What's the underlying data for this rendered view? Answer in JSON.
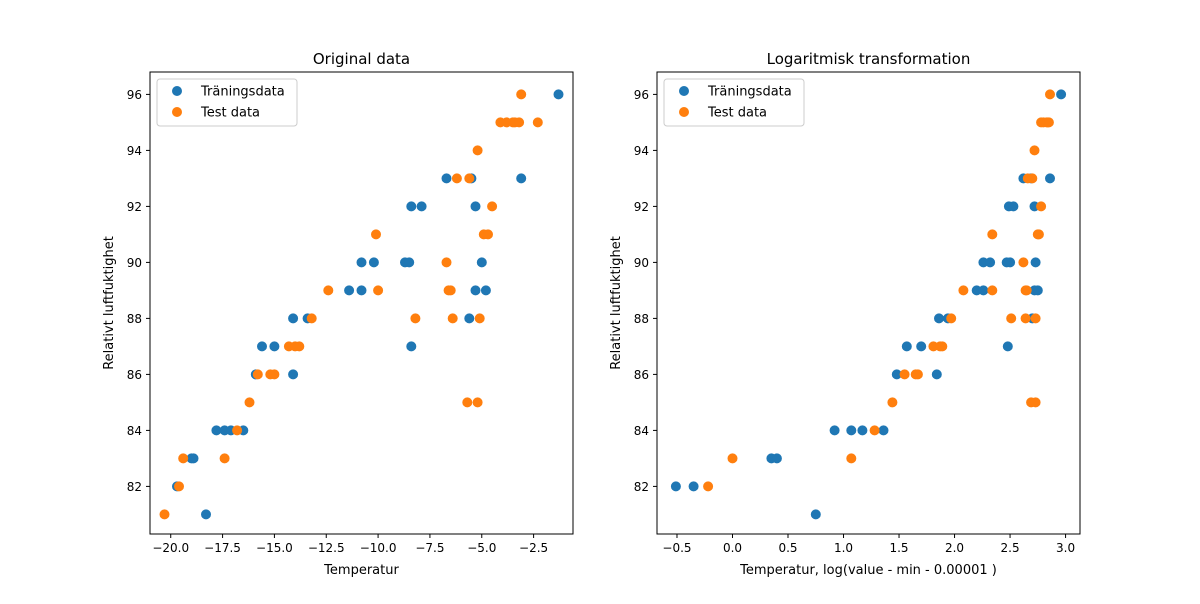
{
  "chart_data": [
    {
      "type": "scatter",
      "title": "Original data",
      "xlabel": "Temperatur",
      "ylabel": "Relativt luftfuktighet",
      "xlim": [
        -21.0,
        -0.6
      ],
      "ylim": [
        80.3,
        96.8
      ],
      "xticks": [
        -20.0,
        -17.5,
        -15.0,
        -12.5,
        -10.0,
        -7.5,
        -5.0,
        -2.5
      ],
      "xtick_labels": [
        "−20.0",
        "−17.5",
        "−15.0",
        "−12.5",
        "−10.0",
        "−7.5",
        "−5.0",
        "−2.5"
      ],
      "yticks": [
        82,
        84,
        86,
        88,
        90,
        92,
        94,
        96
      ],
      "ytick_labels": [
        "82",
        "84",
        "86",
        "88",
        "90",
        "92",
        "94",
        "96"
      ],
      "grid": false,
      "legend_position": "top-left",
      "series": [
        {
          "name": "Träningsdata",
          "color": "#1f77b4",
          "points": [
            [
              -19.7,
              82
            ],
            [
              -18.3,
              81
            ],
            [
              -19.0,
              83
            ],
            [
              -18.9,
              83
            ],
            [
              -17.8,
              84
            ],
            [
              -17.4,
              84
            ],
            [
              -17.1,
              84
            ],
            [
              -16.5,
              84
            ],
            [
              -15.9,
              86
            ],
            [
              -14.1,
              86
            ],
            [
              -15.6,
              87
            ],
            [
              -15.0,
              87
            ],
            [
              -8.4,
              87
            ],
            [
              -14.1,
              88
            ],
            [
              -13.4,
              88
            ],
            [
              -5.6,
              88
            ],
            [
              -11.4,
              89
            ],
            [
              -10.8,
              89
            ],
            [
              -5.3,
              89
            ],
            [
              -4.8,
              89
            ],
            [
              -10.8,
              90
            ],
            [
              -10.2,
              90
            ],
            [
              -8.7,
              90
            ],
            [
              -8.5,
              90
            ],
            [
              -5.0,
              90
            ],
            [
              -8.4,
              92
            ],
            [
              -7.9,
              92
            ],
            [
              -5.3,
              92
            ],
            [
              -6.7,
              93
            ],
            [
              -5.5,
              93
            ],
            [
              -3.1,
              93
            ],
            [
              -1.3,
              96
            ]
          ]
        },
        {
          "name": "Test data",
          "color": "#ff7f0e",
          "points": [
            [
              -20.3,
              81
            ],
            [
              -19.6,
              82
            ],
            [
              -19.4,
              83
            ],
            [
              -17.4,
              83
            ],
            [
              -16.8,
              84
            ],
            [
              -16.2,
              85
            ],
            [
              -5.7,
              85
            ],
            [
              -5.2,
              85
            ],
            [
              -15.8,
              86
            ],
            [
              -15.2,
              86
            ],
            [
              -15.0,
              86
            ],
            [
              -14.3,
              87
            ],
            [
              -14.0,
              87
            ],
            [
              -13.8,
              87
            ],
            [
              -13.2,
              88
            ],
            [
              -8.2,
              88
            ],
            [
              -6.4,
              88
            ],
            [
              -5.1,
              88
            ],
            [
              -12.4,
              89
            ],
            [
              -10.0,
              89
            ],
            [
              -6.6,
              89
            ],
            [
              -6.5,
              89
            ],
            [
              -10.1,
              91
            ],
            [
              -6.7,
              90
            ],
            [
              -4.9,
              91
            ],
            [
              -4.7,
              91
            ],
            [
              -4.5,
              92
            ],
            [
              -6.2,
              93
            ],
            [
              -5.6,
              93
            ],
            [
              -5.2,
              94
            ],
            [
              -4.1,
              95
            ],
            [
              -3.8,
              95
            ],
            [
              -3.5,
              95
            ],
            [
              -3.4,
              95
            ],
            [
              -3.2,
              95
            ],
            [
              -2.3,
              95
            ],
            [
              -3.1,
              96
            ]
          ]
        }
      ]
    },
    {
      "type": "scatter",
      "title": "Logaritmisk transformation",
      "xlabel": "Temperatur, log(value - min - 0.00001 )",
      "ylabel": "Relativt luftfuktighet",
      "xlim": [
        -0.68,
        3.13
      ],
      "ylim": [
        80.3,
        96.8
      ],
      "xticks": [
        -0.5,
        0.0,
        0.5,
        1.0,
        1.5,
        2.0,
        2.5,
        3.0
      ],
      "xtick_labels": [
        "−0.5",
        "0.0",
        "0.5",
        "1.0",
        "1.5",
        "2.0",
        "2.5",
        "3.0"
      ],
      "yticks": [
        82,
        84,
        86,
        88,
        90,
        92,
        94,
        96
      ],
      "ytick_labels": [
        "82",
        "84",
        "86",
        "88",
        "90",
        "92",
        "94",
        "96"
      ],
      "grid": false,
      "legend_position": "top-left",
      "series": [
        {
          "name": "Träningsdata",
          "color": "#1f77b4",
          "points": [
            [
              -0.51,
              82
            ],
            [
              -0.35,
              82
            ],
            [
              0.35,
              83
            ],
            [
              0.4,
              83
            ],
            [
              0.75,
              81
            ],
            [
              0.92,
              84
            ],
            [
              1.07,
              84
            ],
            [
              1.17,
              84
            ],
            [
              1.36,
              84
            ],
            [
              1.48,
              86
            ],
            [
              1.84,
              86
            ],
            [
              1.57,
              87
            ],
            [
              1.7,
              87
            ],
            [
              2.48,
              87
            ],
            [
              1.86,
              88
            ],
            [
              1.94,
              88
            ],
            [
              2.7,
              88
            ],
            [
              2.2,
              89
            ],
            [
              2.26,
              89
            ],
            [
              2.72,
              89
            ],
            [
              2.75,
              89
            ],
            [
              2.26,
              90
            ],
            [
              2.32,
              90
            ],
            [
              2.47,
              90
            ],
            [
              2.5,
              90
            ],
            [
              2.73,
              90
            ],
            [
              2.49,
              92
            ],
            [
              2.53,
              92
            ],
            [
              2.72,
              92
            ],
            [
              2.62,
              93
            ],
            [
              2.69,
              93
            ],
            [
              2.86,
              93
            ],
            [
              2.96,
              96
            ]
          ]
        },
        {
          "name": "Test data",
          "color": "#ff7f0e",
          "points": [
            [
              -0.22,
              82
            ],
            [
              0.0,
              83
            ],
            [
              1.07,
              83
            ],
            [
              1.28,
              84
            ],
            [
              1.44,
              85
            ],
            [
              2.69,
              85
            ],
            [
              2.73,
              85
            ],
            [
              1.55,
              86
            ],
            [
              1.65,
              86
            ],
            [
              1.67,
              86
            ],
            [
              1.81,
              87
            ],
            [
              1.87,
              87
            ],
            [
              1.89,
              87
            ],
            [
              1.97,
              88
            ],
            [
              2.51,
              88
            ],
            [
              2.64,
              88
            ],
            [
              2.73,
              88
            ],
            [
              2.08,
              89
            ],
            [
              2.34,
              89
            ],
            [
              2.64,
              89
            ],
            [
              2.65,
              89
            ],
            [
              2.34,
              91
            ],
            [
              2.62,
              90
            ],
            [
              2.75,
              91
            ],
            [
              2.76,
              91
            ],
            [
              2.78,
              92
            ],
            [
              2.66,
              93
            ],
            [
              2.7,
              93
            ],
            [
              2.72,
              94
            ],
            [
              2.78,
              95
            ],
            [
              2.8,
              95
            ],
            [
              2.83,
              95
            ],
            [
              2.84,
              95
            ],
            [
              2.85,
              95
            ],
            [
              2.86,
              96
            ]
          ]
        }
      ]
    }
  ]
}
